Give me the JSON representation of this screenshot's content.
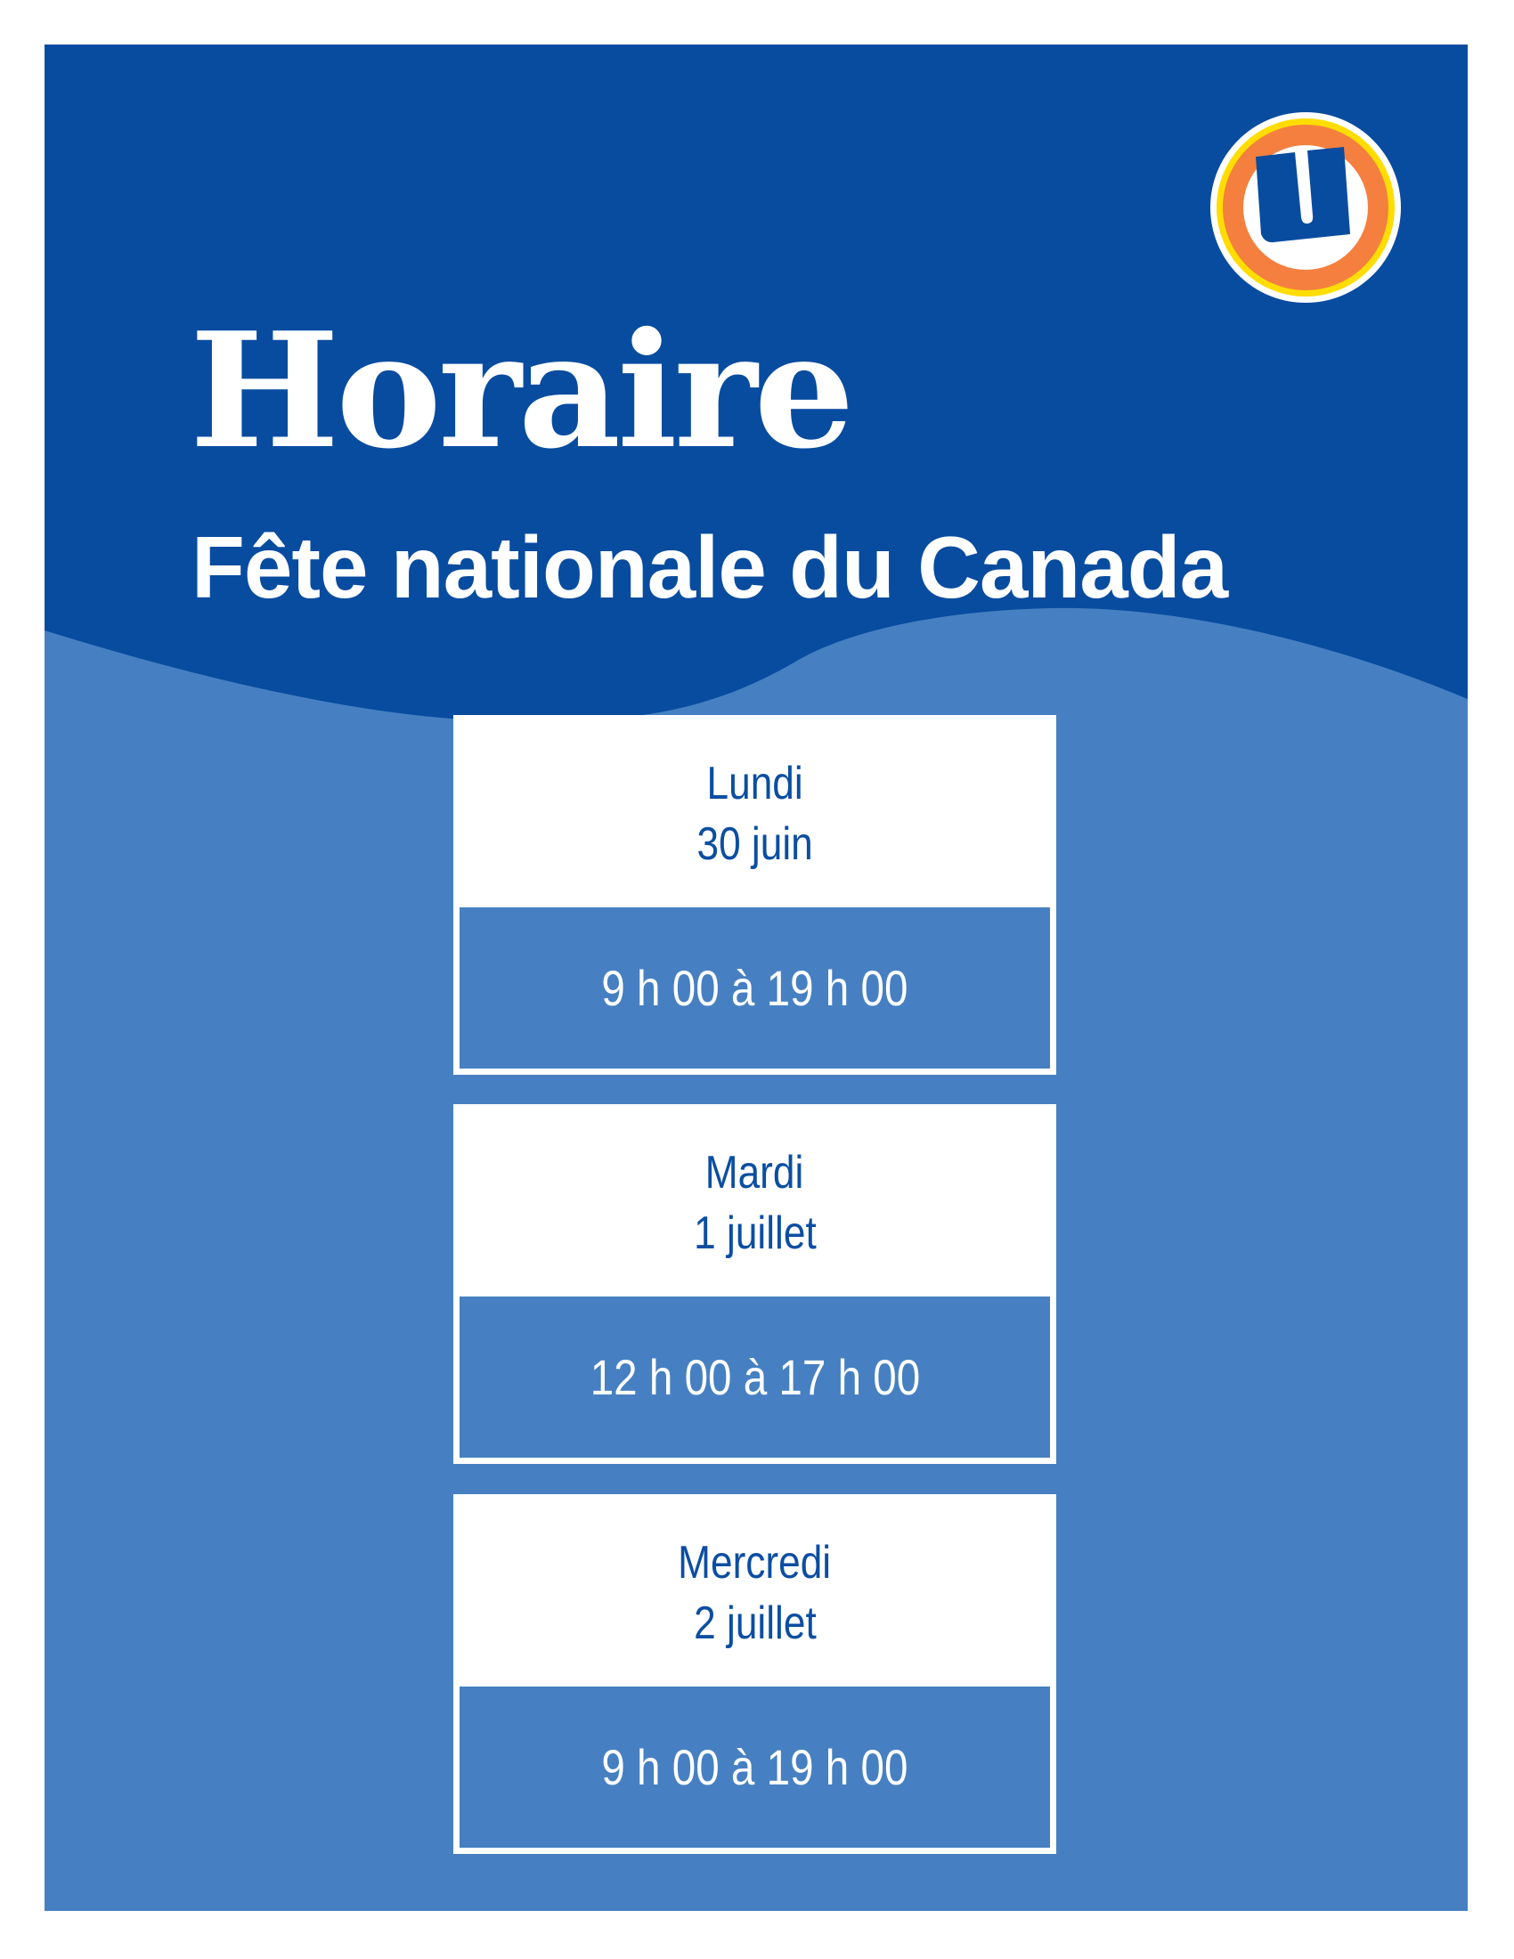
{
  "header": {
    "title": "Horaire",
    "subtitle": "Fête nationale du Canada",
    "logo": {
      "name": "U-logo",
      "letter": "U"
    }
  },
  "schedule": [
    {
      "day": "Lundi",
      "date": "30 juin",
      "hours": "9 h 00 à 19 h 00"
    },
    {
      "day": "Mardi",
      "date": "1 juillet",
      "hours": "12 h 00 à 17 h 00"
    },
    {
      "day": "Mercredi",
      "date": "2 juillet",
      "hours": "9 h 00 à 19 h 00"
    }
  ],
  "colors": {
    "dark_blue": "#084ca0",
    "light_blue": "#4680c2",
    "text_blue": "#0b4ea2",
    "logo_orange": "#f47f3f",
    "logo_yellow": "#ffdd00"
  }
}
